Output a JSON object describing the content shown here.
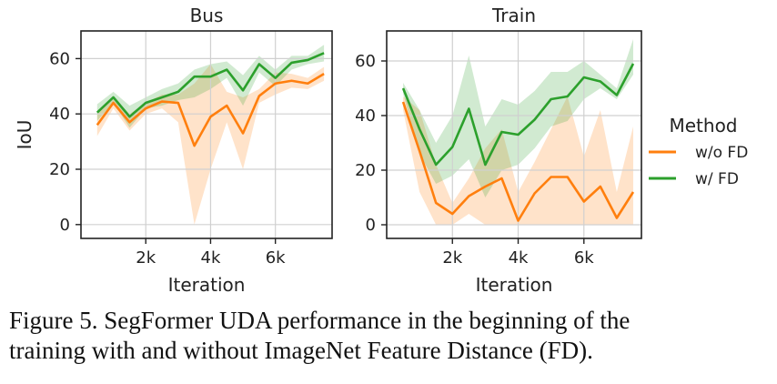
{
  "chart_data": [
    {
      "type": "line",
      "title": "Bus",
      "xlabel": "Iteration",
      "ylabel": "IoU",
      "xlim": [
        0,
        7750
      ],
      "ylim": [
        -5,
        70
      ],
      "xticks": [
        2000,
        4000,
        6000
      ],
      "xtick_labels": [
        "2k",
        "4k",
        "6k"
      ],
      "yticks": [
        0,
        20,
        40,
        60
      ],
      "grid": true,
      "x": [
        500,
        1000,
        1500,
        2000,
        2500,
        3000,
        3500,
        4000,
        4500,
        5000,
        5500,
        6000,
        6500,
        7000,
        7500
      ],
      "series": [
        {
          "name": "w/o FD",
          "color": "#ff7f0e",
          "values": [
            36,
            44,
            37,
            42,
            44.5,
            44,
            28.5,
            39,
            43,
            33,
            46.5,
            51,
            52,
            51,
            54.5
          ],
          "lower": [
            32,
            42,
            34,
            40,
            42,
            37,
            0,
            20,
            37,
            20,
            44,
            47,
            49.5,
            49,
            52
          ],
          "upper": [
            40,
            46,
            40,
            44,
            47,
            47,
            51,
            58,
            48,
            46,
            49,
            55,
            54.5,
            53,
            57
          ]
        },
        {
          "name": "w/ FD",
          "color": "#2ca02c",
          "values": [
            40.5,
            46,
            39,
            44,
            46,
            48,
            53.5,
            53.5,
            56,
            48.5,
            58,
            53,
            58.5,
            59.5,
            62
          ],
          "lower": [
            37.5,
            44,
            35,
            42,
            43,
            45,
            46,
            49,
            53,
            43,
            55,
            50,
            56,
            58,
            59
          ],
          "upper": [
            43.5,
            48,
            43,
            46,
            49,
            51,
            56,
            58,
            59,
            54,
            61,
            56,
            61,
            61,
            65
          ]
        }
      ]
    },
    {
      "type": "line",
      "title": "Train",
      "xlabel": "Iteration",
      "ylabel": "",
      "xlim": [
        0,
        7750
      ],
      "ylim": [
        -5,
        71
      ],
      "xticks": [
        2000,
        4000,
        6000
      ],
      "xtick_labels": [
        "2k",
        "4k",
        "6k"
      ],
      "yticks": [
        0,
        20,
        40,
        60
      ],
      "grid": true,
      "x": [
        500,
        1000,
        1500,
        2000,
        2500,
        3000,
        3500,
        4000,
        4500,
        5000,
        5500,
        6000,
        6500,
        7000,
        7500
      ],
      "series": [
        {
          "name": "w/o FD",
          "color": "#ff7f0e",
          "values": [
            45,
            27,
            8,
            4,
            10.5,
            14,
            17,
            1.5,
            11.5,
            17.5,
            17.5,
            8.5,
            14,
            2.5,
            12
          ],
          "lower": [
            42,
            12,
            0,
            0,
            4,
            0,
            0,
            0,
            0,
            0,
            0,
            0,
            0,
            0,
            0
          ],
          "upper": [
            47,
            42,
            22,
            8,
            17,
            28,
            35,
            12,
            23,
            35,
            47,
            25,
            42,
            12,
            36
          ]
        },
        {
          "name": "w/ FD",
          "color": "#2ca02c",
          "values": [
            50,
            35,
            22,
            28.5,
            42.5,
            22,
            34,
            33,
            38.5,
            46,
            47,
            54,
            52.5,
            47.5,
            59
          ],
          "lower": [
            48,
            26,
            15,
            18,
            24,
            10,
            20,
            22,
            28,
            36,
            38,
            46,
            50,
            46,
            55
          ],
          "upper": [
            52,
            42,
            30,
            40,
            62,
            36,
            46,
            44,
            49,
            56,
            56,
            60,
            55,
            50,
            68
          ]
        }
      ]
    }
  ],
  "legend": {
    "title": "Method",
    "entries": [
      {
        "label": "w/o FD",
        "color": "#ff7f0e"
      },
      {
        "label": "w/ FD",
        "color": "#2ca02c"
      }
    ]
  },
  "caption": {
    "line1": "Figure 5.  SegFormer UDA performance in the beginning of the",
    "line2": "training with and without ImageNet Feature Distance (FD)."
  }
}
